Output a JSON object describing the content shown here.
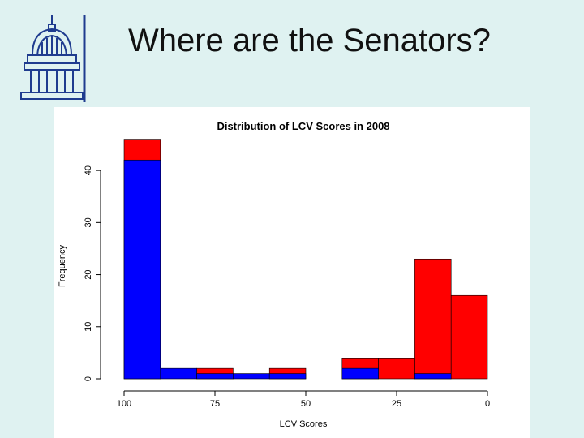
{
  "slide": {
    "title": "Where are the Senators?"
  },
  "colors": {
    "background": "#dff2f1",
    "logo": "#1f3c8f",
    "series_blue": "#0000ff",
    "series_red": "#ff0000"
  },
  "chart_data": {
    "type": "bar",
    "title": "Distribution of LCV Scores in 2008",
    "xlabel": "LCV Scores",
    "ylabel": "Frequency",
    "x_reversed": true,
    "xlim": [
      100,
      0
    ],
    "ylim": [
      0,
      45
    ],
    "xticks": [
      100,
      75,
      50,
      25,
      0
    ],
    "yticks": [
      0,
      10,
      20,
      30,
      40
    ],
    "grid": false,
    "bins": [
      [
        100,
        90
      ],
      [
        90,
        80
      ],
      [
        80,
        70
      ],
      [
        70,
        60
      ],
      [
        60,
        50
      ],
      [
        50,
        40
      ],
      [
        40,
        30
      ],
      [
        30,
        20
      ],
      [
        20,
        10
      ],
      [
        10,
        0
      ]
    ],
    "series": [
      {
        "color": "#0000ff",
        "values": [
          42,
          2,
          1,
          1,
          1,
          0,
          2,
          0,
          1,
          0
        ]
      },
      {
        "color": "#ff0000",
        "values": [
          46,
          0,
          2,
          0,
          2,
          0,
          4,
          4,
          23,
          16
        ]
      }
    ]
  }
}
